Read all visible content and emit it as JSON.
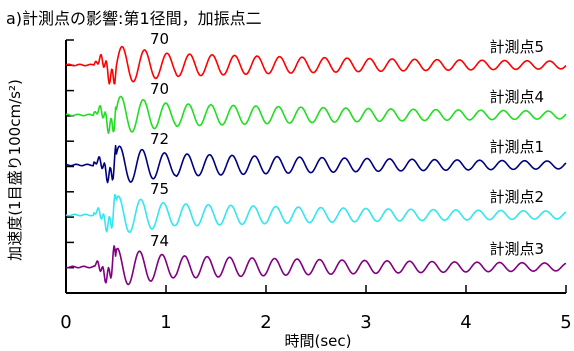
{
  "chart_data": {
    "type": "line",
    "title": "a)計測点の影響:第1径間，加振点二",
    "xlabel": "時間(sec)",
    "ylabel": "加速度(1目盛り100cm/s²)",
    "xlim": [
      0,
      5
    ],
    "x_ticks": [
      "0",
      "1",
      "2",
      "3",
      "4",
      "5"
    ],
    "grid": false,
    "legend": "labels at right end of each trace",
    "signal_model": {
      "onset_sec": 0.28,
      "dominant_period_sec": 0.225,
      "decay_note": "large response 0.45-1.1 s, then slowly decaying free vibration to 5 s"
    },
    "series": [
      {
        "name": "計測点5",
        "color": "#ff0000",
        "peak_label": "70",
        "peak_time_sec": 0.8
      },
      {
        "name": "計測点4",
        "color": "#22dd22",
        "peak_label": "70",
        "peak_time_sec": 0.8
      },
      {
        "name": "計測点1",
        "color": "#000080",
        "peak_label": "72",
        "peak_time_sec": 0.8
      },
      {
        "name": "計測点2",
        "color": "#33e6f0",
        "peak_label": "75",
        "peak_time_sec": 0.8
      },
      {
        "name": "計測点3",
        "color": "#800080",
        "peak_label": "74",
        "peak_time_sec": 0.8
      }
    ]
  }
}
